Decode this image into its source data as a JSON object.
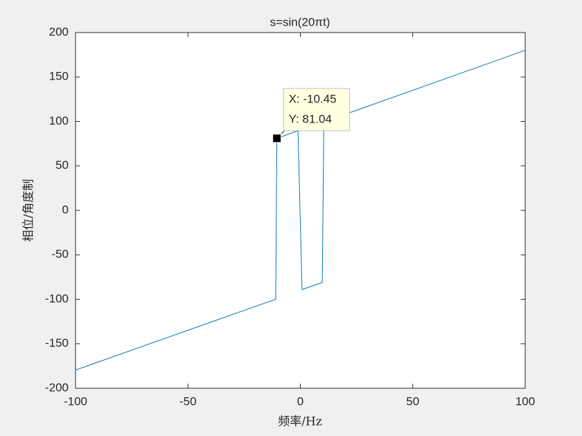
{
  "chart_data": {
    "type": "line",
    "title": "s=sin(20πt)",
    "x_label": "频率/Hz",
    "y_label": "相位/角度制",
    "x": [
      -100,
      -10.95,
      -10.45,
      -1.05,
      0.75,
      9.75,
      10.45,
      100
    ],
    "values": [
      -179.5,
      -99.9,
      81.04,
      89.5,
      -89,
      -81,
      99.5,
      180
    ],
    "color": "#0072bd",
    "xlim": [
      -100,
      100
    ],
    "xticks": [
      -100,
      -50,
      0,
      50,
      100
    ],
    "ylim": [
      -200,
      200
    ],
    "yticks": [
      -200,
      -150,
      -100,
      -50,
      0,
      50,
      100,
      150,
      200
    ],
    "datatip": {
      "x": -10.45,
      "y": 81.04,
      "labels": [
        "X: -10.45",
        "Y: 81.04"
      ]
    }
  }
}
